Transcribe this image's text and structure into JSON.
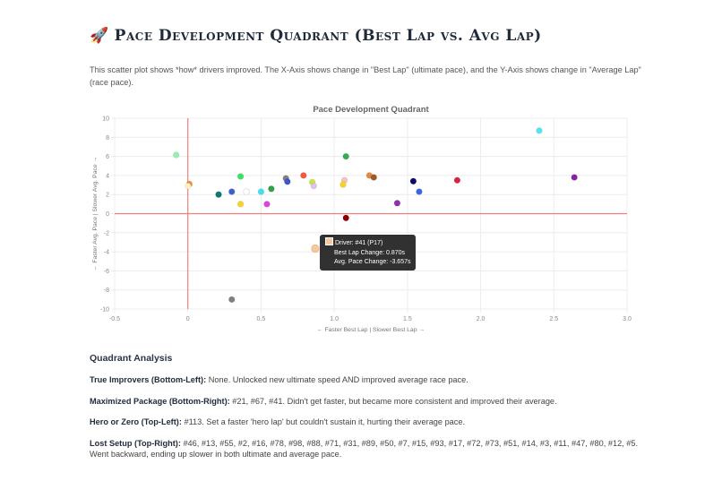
{
  "header": {
    "icon": "rocket-icon",
    "title": "Pace Development Quadrant (Best Lap vs. Avg Lap)",
    "description": "This scatter plot shows *how* drivers improved. The X-Axis shows change in \"Best Lap\" (ultimate pace), and the Y-Axis shows change in \"Average Lap\" (race pace)."
  },
  "tooltip": {
    "driver_line": "Driver: #41 (P17)",
    "best_line": "Best Lap Change: 0.870s",
    "avg_line": "Avg. Pace Change: -3.657s",
    "swatch_color": "#f5c8a0"
  },
  "analysis": {
    "heading": "Quadrant Analysis",
    "items": [
      {
        "label": "True Improvers (Bottom-Left):",
        "text": " None. Unlocked new ultimate speed AND improved average race pace."
      },
      {
        "label": "Maximized Package (Bottom-Right):",
        "text": " #21, #67, #41. Didn't get faster, but became more consistent and improved their average."
      },
      {
        "label": "Hero or Zero (Top-Left):",
        "text": " #113. Set a faster 'hero lap' but couldn't sustain it, hurting their average pace."
      },
      {
        "label": "Lost Setup (Top-Right):",
        "text": " #46, #13, #55, #2, #16, #78, #98, #88, #71, #31, #89, #50, #7, #15, #93, #17, #72, #73, #51, #14, #3, #11, #47, #80, #12, #5. Went backward, ending up slower in both ultimate and average pace."
      }
    ]
  },
  "chart_data": {
    "type": "scatter",
    "title": "Pace Development Quadrant",
    "xlabel": "← Faster Best Lap | Slower Best Lap →",
    "ylabel": "← Faster Avg. Pace | Slower Avg. Pace →",
    "xlim": [
      -0.5,
      3.0
    ],
    "ylim": [
      -10,
      10
    ],
    "xticks": [
      "-0.5",
      "0",
      "0.5",
      "1.0",
      "1.5",
      "2.0",
      "2.5",
      "3.0"
    ],
    "yticks": [
      "10",
      "8",
      "6",
      "4",
      "2",
      "0",
      "-2",
      "-4",
      "-6",
      "-8",
      "-10"
    ],
    "grid": true,
    "reference_lines": {
      "x": 0,
      "y": 0,
      "color": "#f08080"
    },
    "points": [
      {
        "x": -0.08,
        "y": 6.15,
        "color": "#98f0b0"
      },
      {
        "x": 0.01,
        "y": 3.1,
        "color": "#f08a3c"
      },
      {
        "x": 0.0,
        "y": 2.9,
        "color": "#fff3c0"
      },
      {
        "x": 0.21,
        "y": 2.0,
        "color": "#0a7a72"
      },
      {
        "x": 0.3,
        "y": 2.3,
        "color": "#3f5fcc"
      },
      {
        "x": 0.36,
        "y": 3.9,
        "color": "#3ee060"
      },
      {
        "x": 0.36,
        "y": 1.0,
        "color": "#f5d22a"
      },
      {
        "x": 0.4,
        "y": 2.3,
        "color": "#ffffff"
      },
      {
        "x": 0.5,
        "y": 2.3,
        "color": "#3fe0ee"
      },
      {
        "x": 0.54,
        "y": 1.0,
        "color": "#e040e0"
      },
      {
        "x": 0.57,
        "y": 2.6,
        "color": "#33a048"
      },
      {
        "x": 0.67,
        "y": 3.7,
        "color": "#808080"
      },
      {
        "x": 0.68,
        "y": 3.35,
        "color": "#3f55cc"
      },
      {
        "x": 0.79,
        "y": 4.0,
        "color": "#f05a3a"
      },
      {
        "x": 0.85,
        "y": 3.3,
        "color": "#c8e83a"
      },
      {
        "x": 0.86,
        "y": 2.9,
        "color": "#e0c0f0"
      },
      {
        "x": 0.87,
        "y": -3.66,
        "color": "#f5c8a0"
      },
      {
        "x": 1.08,
        "y": 6.0,
        "color": "#3aaa50"
      },
      {
        "x": 1.07,
        "y": 3.5,
        "color": "#f5c0c0"
      },
      {
        "x": 1.06,
        "y": 3.05,
        "color": "#f5d22a"
      },
      {
        "x": 1.08,
        "y": -0.45,
        "color": "#8b0000"
      },
      {
        "x": 1.24,
        "y": 4.0,
        "color": "#e8883a"
      },
      {
        "x": 1.27,
        "y": 3.8,
        "color": "#a0582a"
      },
      {
        "x": 1.43,
        "y": 1.1,
        "color": "#9030b0"
      },
      {
        "x": 1.54,
        "y": 3.4,
        "color": "#0a0a6a"
      },
      {
        "x": 1.58,
        "y": 2.3,
        "color": "#3a66e8"
      },
      {
        "x": 1.84,
        "y": 3.5,
        "color": "#e02040"
      },
      {
        "x": 2.4,
        "y": 8.7,
        "color": "#50e8ee"
      },
      {
        "x": 2.64,
        "y": 3.8,
        "color": "#8a20a8"
      },
      {
        "x": 0.3,
        "y": -9.0,
        "color": "#808080"
      }
    ]
  }
}
